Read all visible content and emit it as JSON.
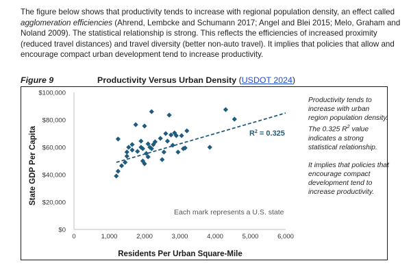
{
  "intro": {
    "text_before_em": "The figure below shows that productivity tends to increase with regional population density, an effect called ",
    "em_text": "agglomeration efficiencies",
    "text_after_em": " (Ahrend, Lembcke and Schumann 2017; Angel and Blei 2015; Melo, Graham and Noland 2009). The statistical relationship is strong. This reflects the efficiencies of increased proximity (reduced travel distances) and travel diversity (better non-auto travel). It implies that policies that allow and encourage compact urban development tend to increase productivity."
  },
  "figure": {
    "label": "Figure 9",
    "title": "Productivity Versus Urban Density",
    "source_open": "(",
    "source_link": "USDOT 2024",
    "source_close": ")"
  },
  "side_note": {
    "p1_before": "Productivity tends to increase with urban region population density. The 0.325 R",
    "p1_sup": "2",
    "p1_after": " value indicates a strong statistical relationship.",
    "p2": "It implies that policies that encourage compact development tend to increase productivity."
  },
  "chart_data": {
    "type": "scatter",
    "xlabel": "Residents Per Urban Square-Mile",
    "ylabel": "State GDP Per Capita",
    "xlim": [
      0,
      6000
    ],
    "ylim": [
      0,
      100000
    ],
    "xticks": [
      0,
      1000,
      2000,
      3000,
      4000,
      5000,
      6000
    ],
    "xtick_labels": [
      "0",
      "1,000",
      "2,000",
      "3,000",
      "4,000",
      "5,000",
      "6,000"
    ],
    "yticks": [
      0,
      20000,
      40000,
      60000,
      80000,
      100000
    ],
    "ytick_labels": [
      "$0",
      "$20,000",
      "$40,000",
      "$60,000",
      "$80,000",
      "$100,000"
    ],
    "annotation": "Each mark represents a U.S. state",
    "r2_label": "R",
    "r2_sup": "2",
    "r2_value": " = 0.325",
    "trendline": {
      "x": [
        1200,
        6000
      ],
      "y": [
        49000,
        85000
      ]
    },
    "marker_color": "#1f5b7e",
    "trend_color": "#1f5b7e",
    "points": [
      {
        "x": 1250,
        "y": 66000
      },
      {
        "x": 1200,
        "y": 39000
      },
      {
        "x": 1250,
        "y": 42500
      },
      {
        "x": 1350,
        "y": 46500
      },
      {
        "x": 1450,
        "y": 49000
      },
      {
        "x": 1500,
        "y": 53500
      },
      {
        "x": 1500,
        "y": 56500
      },
      {
        "x": 1550,
        "y": 60000
      },
      {
        "x": 1650,
        "y": 62000
      },
      {
        "x": 1650,
        "y": 58000
      },
      {
        "x": 1750,
        "y": 76500
      },
      {
        "x": 1800,
        "y": 57000
      },
      {
        "x": 1900,
        "y": 64500
      },
      {
        "x": 1900,
        "y": 60000
      },
      {
        "x": 1950,
        "y": 59000
      },
      {
        "x": 1950,
        "y": 50000
      },
      {
        "x": 2000,
        "y": 48000
      },
      {
        "x": 2000,
        "y": 75500
      },
      {
        "x": 2050,
        "y": 55500
      },
      {
        "x": 2100,
        "y": 62500
      },
      {
        "x": 2100,
        "y": 53000
      },
      {
        "x": 2150,
        "y": 60000
      },
      {
        "x": 2200,
        "y": 86000
      },
      {
        "x": 2200,
        "y": 59000
      },
      {
        "x": 2250,
        "y": 62000
      },
      {
        "x": 2300,
        "y": 64000
      },
      {
        "x": 2450,
        "y": 66500
      },
      {
        "x": 2500,
        "y": 51000
      },
      {
        "x": 2550,
        "y": 56500
      },
      {
        "x": 2600,
        "y": 70000
      },
      {
        "x": 2650,
        "y": 64500
      },
      {
        "x": 2700,
        "y": 83500
      },
      {
        "x": 2750,
        "y": 69000
      },
      {
        "x": 2800,
        "y": 61500
      },
      {
        "x": 2850,
        "y": 70500
      },
      {
        "x": 2900,
        "y": 68500
      },
      {
        "x": 2950,
        "y": 56500
      },
      {
        "x": 3050,
        "y": 68500
      },
      {
        "x": 3100,
        "y": 59000
      },
      {
        "x": 3150,
        "y": 59500
      },
      {
        "x": 3200,
        "y": 72000
      },
      {
        "x": 3850,
        "y": 60000
      },
      {
        "x": 4300,
        "y": 87500
      },
      {
        "x": 4550,
        "y": 80500
      }
    ]
  }
}
